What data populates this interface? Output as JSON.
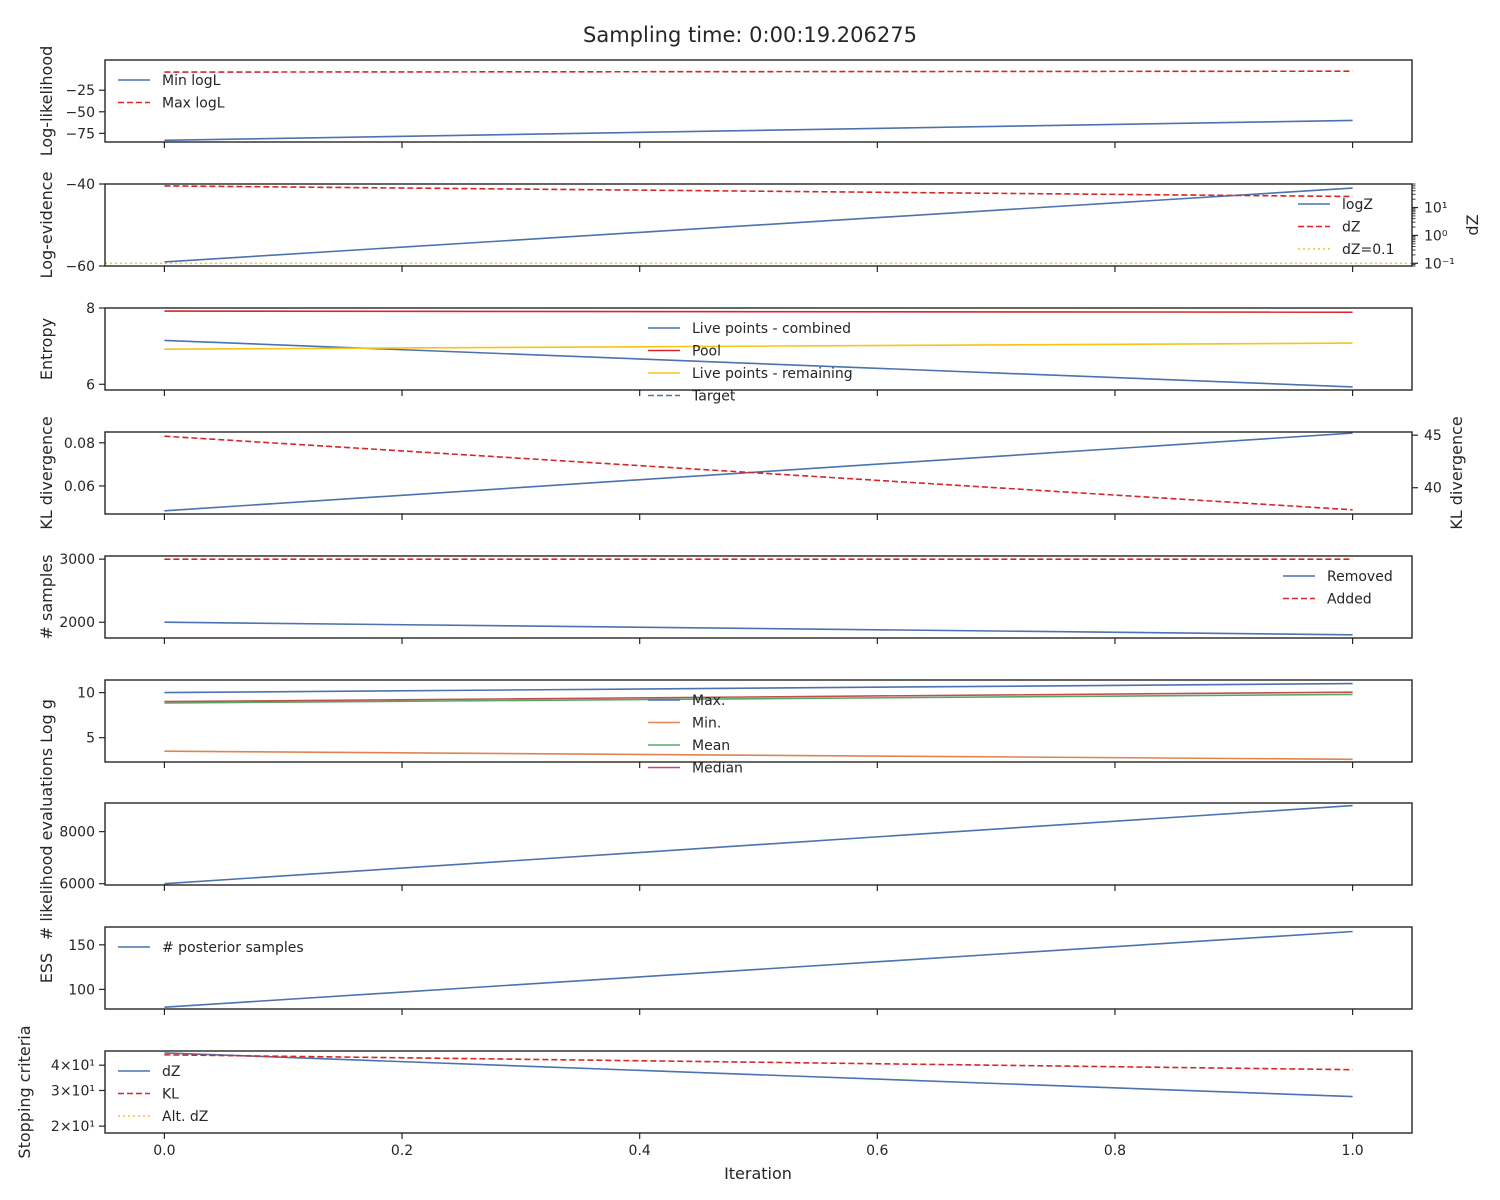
{
  "figure": {
    "title": "Sampling time: 0:00:19.206275",
    "xlabel": "Iteration"
  },
  "colors": {
    "blue": "#4c72b0",
    "red": "#d62728",
    "yellow": "#f5c518",
    "orange": "#dd8452",
    "green": "#55a868",
    "crimson": "#c44e52",
    "axis": "#262626"
  },
  "x_ticks": [
    0.0,
    0.2,
    0.4,
    0.6,
    0.8,
    1.0
  ],
  "x_tick_labels": [
    "0.0",
    "0.2",
    "0.4",
    "0.6",
    "0.8",
    "1.0"
  ],
  "chart_data": [
    {
      "type": "line",
      "ylabel": "Log-likelihood",
      "ylim": [
        -85,
        10
      ],
      "xlim": [
        -0.05,
        1.05
      ],
      "yticks": [
        -75,
        -50,
        -25
      ],
      "ytick_labels": [
        "−75",
        "−50",
        "−25"
      ],
      "legend": {
        "loc": "upper-left"
      },
      "series": [
        {
          "name": "Min logL",
          "x": [
            0,
            1
          ],
          "y": [
            -83,
            -60
          ],
          "color": "blue",
          "dash": "solid"
        },
        {
          "name": "Max logL",
          "x": [
            0,
            1
          ],
          "y": [
            -4,
            -3
          ],
          "color": "red",
          "dash": "dashed"
        }
      ]
    },
    {
      "type": "line",
      "ylabel": "Log-evidence",
      "ylim": [
        -60,
        -40
      ],
      "xlim": [
        -0.05,
        1.05
      ],
      "yticks": [
        -60,
        -40
      ],
      "ytick_labels": [
        "−60",
        "−40"
      ],
      "y2label": "dZ",
      "y2scale": "log",
      "y2lim": [
        0.08,
        70
      ],
      "y2ticks": [
        0.1,
        1,
        10
      ],
      "y2tick_labels": [
        "10⁻¹",
        "10⁰",
        "10¹"
      ],
      "legend": {
        "loc": "right"
      },
      "series": [
        {
          "name": "logZ",
          "x": [
            0,
            1
          ],
          "y": [
            -59,
            -41
          ],
          "color": "blue",
          "dash": "solid"
        },
        {
          "name": "dZ",
          "axis": "y2",
          "x": [
            0,
            1
          ],
          "y": [
            60,
            25
          ],
          "color": "red",
          "dash": "dashed"
        },
        {
          "name": "dZ=0.1",
          "axis": "y2",
          "x": [
            -0.05,
            1.05
          ],
          "y": [
            0.1,
            0.1
          ],
          "color": "yellow",
          "dash": "dotted"
        }
      ]
    },
    {
      "type": "line",
      "ylabel": "Entropy",
      "ylim": [
        5.85,
        8.0
      ],
      "xlim": [
        -0.05,
        1.05
      ],
      "yticks": [
        6,
        8
      ],
      "ytick_labels": [
        "6",
        "8"
      ],
      "legend": {
        "loc": "upper-center"
      },
      "series": [
        {
          "name": "Live points - combined",
          "x": [
            0,
            1
          ],
          "y": [
            7.15,
            5.93
          ],
          "color": "blue",
          "dash": "solid"
        },
        {
          "name": "Pool",
          "x": [
            0,
            1
          ],
          "y": [
            7.92,
            7.89
          ],
          "color": "red",
          "dash": "solid"
        },
        {
          "name": "Live points - remaining",
          "x": [
            0,
            1
          ],
          "y": [
            6.92,
            7.08
          ],
          "color": "yellow",
          "dash": "solid"
        },
        {
          "name": "Target",
          "x": [],
          "y": [],
          "color": "blue",
          "dash": "dashed"
        }
      ]
    },
    {
      "type": "line",
      "ylabel": "KL divergence",
      "ylim": [
        0.047,
        0.085
      ],
      "xlim": [
        -0.05,
        1.05
      ],
      "yticks": [
        0.06,
        0.08
      ],
      "ytick_labels": [
        "0.06",
        "0.08"
      ],
      "y2label": "KL divergence",
      "y2lim": [
        37.5,
        45.3
      ],
      "y2ticks": [
        40,
        45
      ],
      "y2tick_labels": [
        "40",
        "45"
      ],
      "series": [
        {
          "name": "",
          "x": [
            0,
            1
          ],
          "y": [
            0.0485,
            0.0845
          ],
          "color": "blue",
          "dash": "solid"
        },
        {
          "name": "",
          "axis": "y2",
          "x": [
            0,
            1
          ],
          "y": [
            44.9,
            37.9
          ],
          "color": "red",
          "dash": "dashed"
        }
      ]
    },
    {
      "type": "line",
      "ylabel": "# samples",
      "ylim": [
        1750,
        3050
      ],
      "xlim": [
        -0.05,
        1.05
      ],
      "yticks": [
        2000,
        3000
      ],
      "ytick_labels": [
        "2000",
        "3000"
      ],
      "legend": {
        "loc": "right"
      },
      "series": [
        {
          "name": "Removed",
          "x": [
            0,
            1
          ],
          "y": [
            2000,
            1800
          ],
          "color": "blue",
          "dash": "solid"
        },
        {
          "name": "Added",
          "x": [
            0,
            1
          ],
          "y": [
            3000,
            3000
          ],
          "color": "red",
          "dash": "dashed"
        }
      ]
    },
    {
      "type": "line",
      "ylabel": "Log g",
      "ylim": [
        2.3,
        11.4
      ],
      "xlim": [
        -0.05,
        1.05
      ],
      "yticks": [
        5,
        10
      ],
      "ytick_labels": [
        "5",
        "10"
      ],
      "legend": {
        "loc": "upper-center"
      },
      "series": [
        {
          "name": "Max.",
          "x": [
            0,
            1
          ],
          "y": [
            10.0,
            11.0
          ],
          "color": "blue",
          "dash": "solid"
        },
        {
          "name": "Min.",
          "x": [
            0,
            1
          ],
          "y": [
            3.5,
            2.6
          ],
          "color": "orange",
          "dash": "solid"
        },
        {
          "name": "Mean",
          "x": [
            0,
            1
          ],
          "y": [
            8.85,
            9.8
          ],
          "color": "green",
          "dash": "solid"
        },
        {
          "name": "Median",
          "x": [
            0,
            1
          ],
          "y": [
            9.0,
            10.05
          ],
          "color": "crimson",
          "dash": "solid"
        }
      ]
    },
    {
      "type": "line",
      "ylabel": "# likelihood evaluations",
      "ylim": [
        5950,
        9100
      ],
      "xlim": [
        -0.05,
        1.05
      ],
      "yticks": [
        6000,
        8000
      ],
      "ytick_labels": [
        "6000",
        "8000"
      ],
      "series": [
        {
          "name": "",
          "x": [
            0,
            1
          ],
          "y": [
            6000,
            9000
          ],
          "color": "blue",
          "dash": "solid"
        }
      ]
    },
    {
      "type": "line",
      "ylabel": "ESS",
      "ylim": [
        78,
        170
      ],
      "xlim": [
        -0.05,
        1.05
      ],
      "yticks": [
        100,
        150
      ],
      "ytick_labels": [
        "100",
        "150"
      ],
      "legend": {
        "loc": "upper-left"
      },
      "series": [
        {
          "name": "# posterior samples",
          "x": [
            0,
            1
          ],
          "y": [
            80,
            165
          ],
          "color": "blue",
          "dash": "solid"
        }
      ]
    },
    {
      "type": "line",
      "ylabel": "Stopping criteria",
      "yscale": "log",
      "ylim": [
        18.5,
        47
      ],
      "xlim": [
        -0.05,
        1.05
      ],
      "yticks": [
        20,
        30,
        40
      ],
      "ytick_labels": [
        "2×10¹",
        "3×10¹",
        "4×10¹"
      ],
      "legend": {
        "loc": "upper-left"
      },
      "series": [
        {
          "name": "dZ",
          "x": [
            0,
            1
          ],
          "y": [
            46,
            28
          ],
          "color": "blue",
          "dash": "solid"
        },
        {
          "name": "KL",
          "x": [
            0,
            1
          ],
          "y": [
            45,
            38
          ],
          "color": "red",
          "dash": "dashed"
        },
        {
          "name": "Alt. dZ",
          "x": [],
          "y": [],
          "color": "yellow",
          "dash": "dotted"
        }
      ]
    }
  ]
}
